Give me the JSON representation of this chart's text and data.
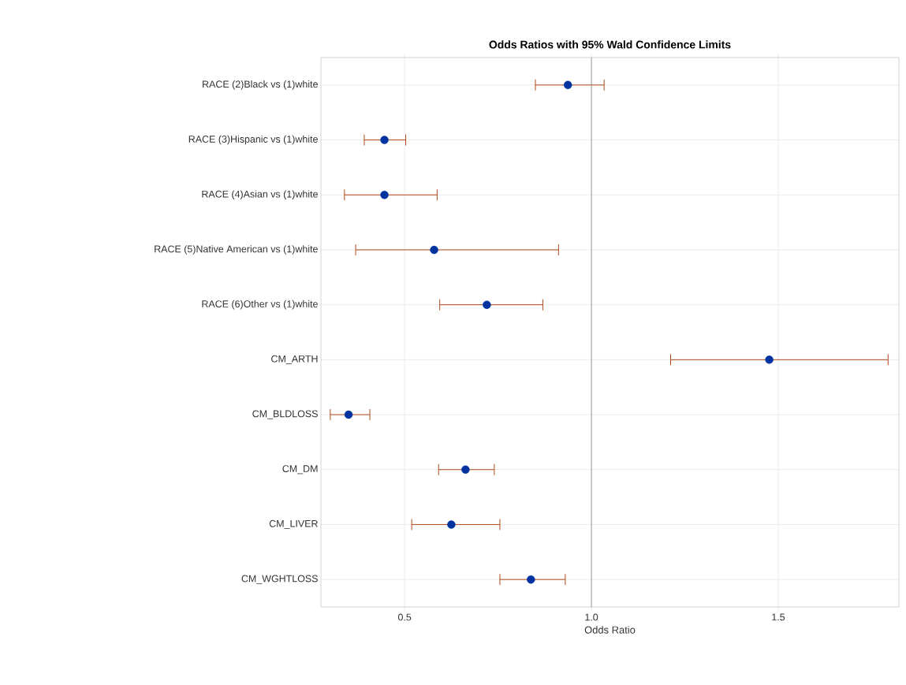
{
  "chart_data": {
    "type": "scatter",
    "orientation": "horizontal",
    "title": "Odds Ratios with 95% Wald Confidence Limits",
    "xlabel": "Odds Ratio",
    "categories": [
      "RACE (2)Black vs (1)white",
      "RACE (3)Hispanic vs (1)white",
      "RACE (4)Asian vs (1)white",
      "RACE (5)Native American vs (1)white",
      "RACE (6)Other vs (1)white",
      "CM_ARTH",
      "CM_BLDLOSS",
      "CM_DM",
      "CM_LIVER",
      "CM_WGHTLOSS"
    ],
    "series": [
      {
        "color": "#0033a0",
        "values": [
          0.937,
          0.446,
          0.446,
          0.579,
          0.72,
          1.476,
          0.35,
          0.663,
          0.625,
          0.838
        ],
        "errors": [
          [
            0.85,
            1.034
          ],
          [
            0.392,
            0.503
          ],
          [
            0.339,
            0.587
          ],
          [
            0.369,
            0.912
          ],
          [
            0.594,
            0.87
          ],
          [
            1.212,
            1.794
          ],
          [
            0.301,
            0.407
          ],
          [
            0.591,
            0.74
          ],
          [
            0.519,
            0.755
          ],
          [
            0.755,
            0.93
          ]
        ]
      }
    ],
    "xlim": [
      0.276,
      1.823
    ],
    "xticks": [
      0.5,
      {
        "value": 1,
        "label": "1.0"
      },
      1.5
    ],
    "ref_lines": [
      {
        "axis": "x",
        "value": 1,
        "color": "#8c9296"
      }
    ],
    "grid": true,
    "marker": "circle",
    "legend": false
  }
}
